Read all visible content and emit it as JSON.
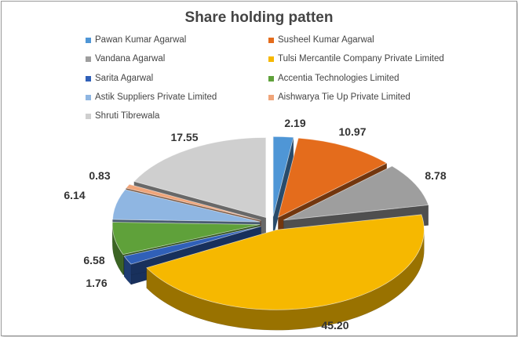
{
  "chart_data": {
    "type": "pie",
    "title": "Share holding patten",
    "legend_position": "top",
    "three_d": true,
    "slices": [
      {
        "label": "Pawan Kumar Agarwal",
        "value": 2.19,
        "display": "2.19",
        "color": "#4f96d6"
      },
      {
        "label": "Susheel Kumar Agarwal",
        "value": 10.97,
        "display": "10.97",
        "color": "#e46c1c"
      },
      {
        "label": "Vandana Agarwal",
        "value": 8.78,
        "display": "8.78",
        "color": "#9e9e9e"
      },
      {
        "label": "Tulsi Mercantile Company Private Limited",
        "value": 45.2,
        "display": "45.20",
        "color": "#f6b800"
      },
      {
        "label": "Sarita Agarwal",
        "value": 1.76,
        "display": "1.76",
        "color": "#3060b8"
      },
      {
        "label": "Accentia Technologies Limited",
        "value": 6.58,
        "display": "6.58",
        "color": "#5fa13a"
      },
      {
        "label": "Astik Suppliers Private Limited",
        "value": 6.14,
        "display": "6.14",
        "color": "#8fb6e2"
      },
      {
        "label": "Aishwarya Tie Up Private Limited",
        "value": 0.83,
        "display": "0.83",
        "color": "#f0a57a"
      },
      {
        "label": "Shruti Tibrewala",
        "value": 17.55,
        "display": "17.55",
        "color": "#cfcfcf"
      }
    ]
  }
}
